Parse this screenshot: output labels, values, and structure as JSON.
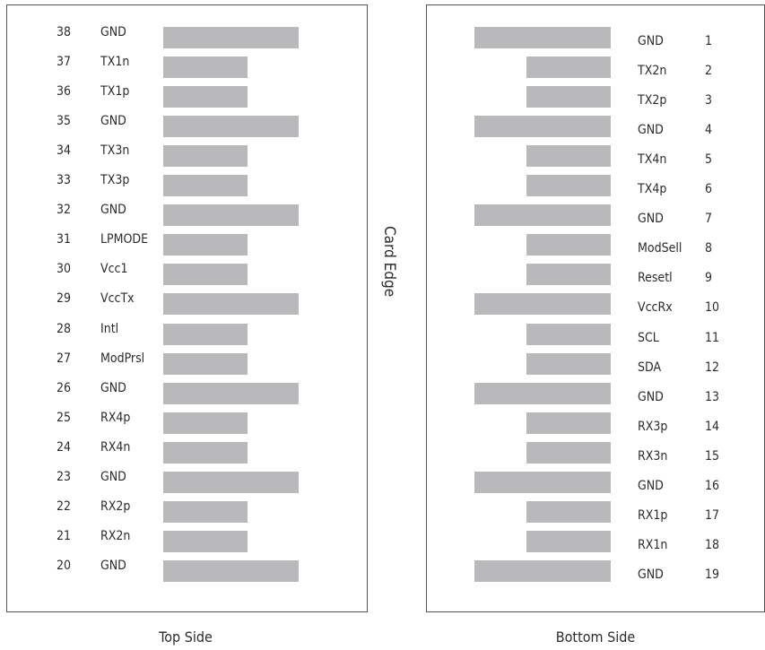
{
  "top_side": {
    "caption": "Top Side",
    "pins": [
      {
        "num": "38",
        "name": "GND",
        "long": true
      },
      {
        "num": "37",
        "name": "TX1n",
        "long": false
      },
      {
        "num": "36",
        "name": "TX1p",
        "long": false
      },
      {
        "num": "35",
        "name": "GND",
        "long": true
      },
      {
        "num": "34",
        "name": "TX3n",
        "long": false
      },
      {
        "num": "33",
        "name": "TX3p",
        "long": false
      },
      {
        "num": "32",
        "name": "GND",
        "long": true
      },
      {
        "num": "31",
        "name": "LPMODE",
        "long": false
      },
      {
        "num": "30",
        "name": "Vcc1",
        "long": false
      },
      {
        "num": "29",
        "name": "VccTx",
        "long": true
      },
      {
        "num": "28",
        "name": "Intl",
        "long": false
      },
      {
        "num": "27",
        "name": "ModPrsl",
        "long": false
      },
      {
        "num": "26",
        "name": "GND",
        "long": true
      },
      {
        "num": "25",
        "name": "RX4p",
        "long": false
      },
      {
        "num": "24",
        "name": "RX4n",
        "long": false
      },
      {
        "num": "23",
        "name": "GND",
        "long": true
      },
      {
        "num": "22",
        "name": "RX2p",
        "long": false
      },
      {
        "num": "21",
        "name": "RX2n",
        "long": false
      },
      {
        "num": "20",
        "name": "GND",
        "long": true
      }
    ]
  },
  "bottom_side": {
    "caption": "Bottom Side",
    "pins": [
      {
        "num": "1",
        "name": "GND",
        "long": true
      },
      {
        "num": "2",
        "name": "TX2n",
        "long": false
      },
      {
        "num": "3",
        "name": "TX2p",
        "long": false
      },
      {
        "num": "4",
        "name": "GND",
        "long": true
      },
      {
        "num": "5",
        "name": "TX4n",
        "long": false
      },
      {
        "num": "6",
        "name": "TX4p",
        "long": false
      },
      {
        "num": "7",
        "name": "GND",
        "long": true
      },
      {
        "num": "8",
        "name": "ModSell",
        "long": false
      },
      {
        "num": "9",
        "name": "Resetl",
        "long": false
      },
      {
        "num": "10",
        "name": "VccRx",
        "long": true
      },
      {
        "num": "11",
        "name": "SCL",
        "long": false
      },
      {
        "num": "12",
        "name": "SDA",
        "long": false
      },
      {
        "num": "13",
        "name": "GND",
        "long": true
      },
      {
        "num": "14",
        "name": "RX3p",
        "long": false
      },
      {
        "num": "15",
        "name": "RX3n",
        "long": false
      },
      {
        "num": "16",
        "name": "GND",
        "long": true
      },
      {
        "num": "17",
        "name": "RX1p",
        "long": false
      },
      {
        "num": "18",
        "name": "RX1n",
        "long": false
      },
      {
        "num": "19",
        "name": "GND",
        "long": true
      }
    ]
  },
  "center_label": "Card Edge",
  "colors": {
    "pad": "#b9b9bb",
    "border": "#555555",
    "text": "#2b2b2b"
  }
}
